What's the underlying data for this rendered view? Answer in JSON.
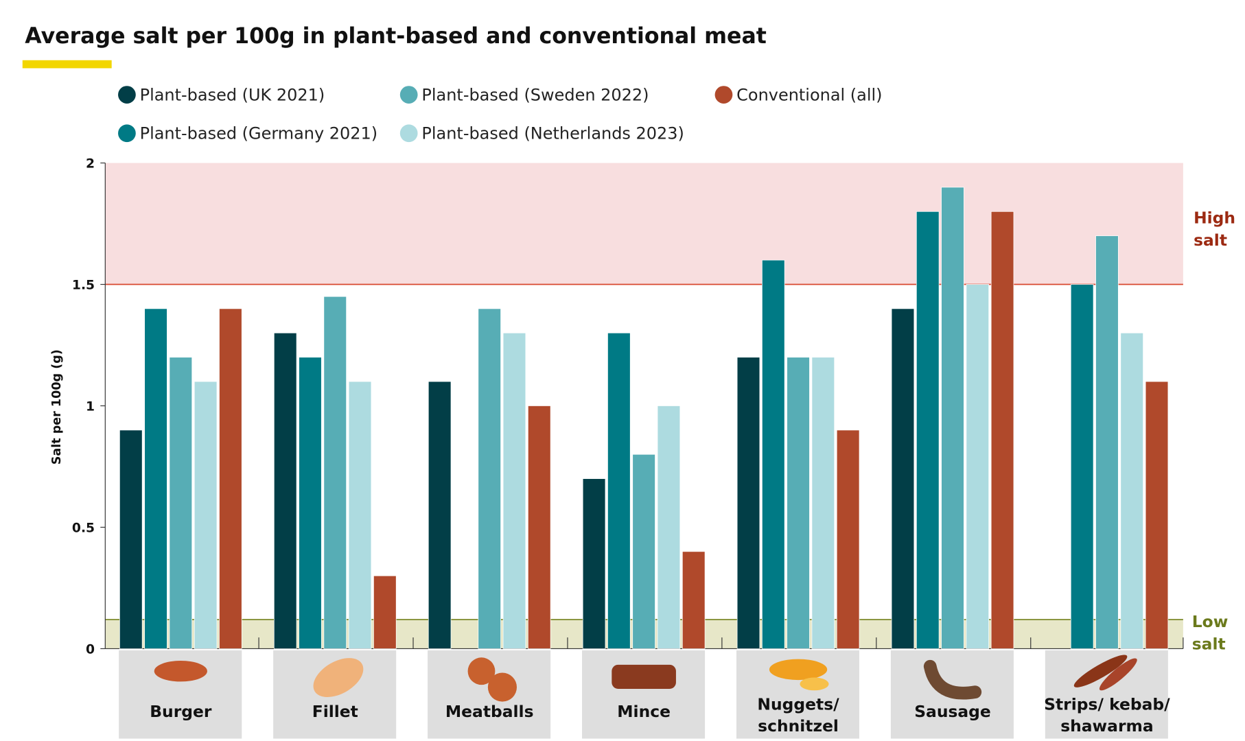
{
  "chart_data": {
    "type": "bar",
    "title": "Average salt per 100g in plant-based and conventional meat",
    "ylabel": "Salt per 100g (g)",
    "xlabel": "",
    "ylim": [
      0,
      2
    ],
    "yticks": [
      "0",
      "0.5",
      "1",
      "1.5",
      "2"
    ],
    "grid": false,
    "legend_position": "top",
    "categories": [
      "Burger",
      "Fillet",
      "Meatballs",
      "Mince",
      "Nuggets/ schnitzel",
      "Sausage",
      "Strips/ kebab/ shawarma"
    ],
    "category_lines": [
      [
        "Burger"
      ],
      [
        "Fillet"
      ],
      [
        "Meatballs"
      ],
      [
        "Mince"
      ],
      [
        "Nuggets/",
        "schnitzel"
      ],
      [
        "Sausage"
      ],
      [
        "Strips/ kebab/",
        "shawarma"
      ]
    ],
    "series": [
      {
        "name": "Plant-based (UK 2021)",
        "color": "#023e47",
        "values": [
          0.9,
          1.3,
          1.1,
          0.7,
          1.2,
          1.4,
          null
        ]
      },
      {
        "name": "Plant-based (Germany 2021)",
        "color": "#007a85",
        "values": [
          1.4,
          1.2,
          null,
          1.3,
          1.6,
          1.8,
          1.5
        ]
      },
      {
        "name": "Plant-based (Sweden 2022)",
        "color": "#57adb5",
        "values": [
          1.2,
          1.45,
          1.4,
          0.8,
          1.2,
          1.9,
          1.7
        ]
      },
      {
        "name": "Plant-based (Netherlands 2023)",
        "color": "#addbe0",
        "values": [
          1.1,
          1.1,
          1.3,
          1.0,
          1.2,
          1.5,
          1.3
        ]
      },
      {
        "name": "Conventional (all)",
        "color": "#b0492b",
        "values": [
          1.4,
          0.3,
          1.0,
          0.4,
          0.9,
          1.8,
          1.1
        ]
      }
    ],
    "zones": {
      "high": {
        "label_lines": [
          "High",
          "salt"
        ],
        "from": 1.5,
        "to": 2,
        "fill": "#f8dedf",
        "line": "#d9472f",
        "text_color": "#9c2a12"
      },
      "low": {
        "label_lines": [
          "Low",
          "salt"
        ],
        "from": 0,
        "to": 0.12,
        "fill": "#e7e7c8",
        "line": "#7d8a2a",
        "text_color": "#6b7a1c"
      }
    },
    "accent_color": "#f2d600"
  }
}
